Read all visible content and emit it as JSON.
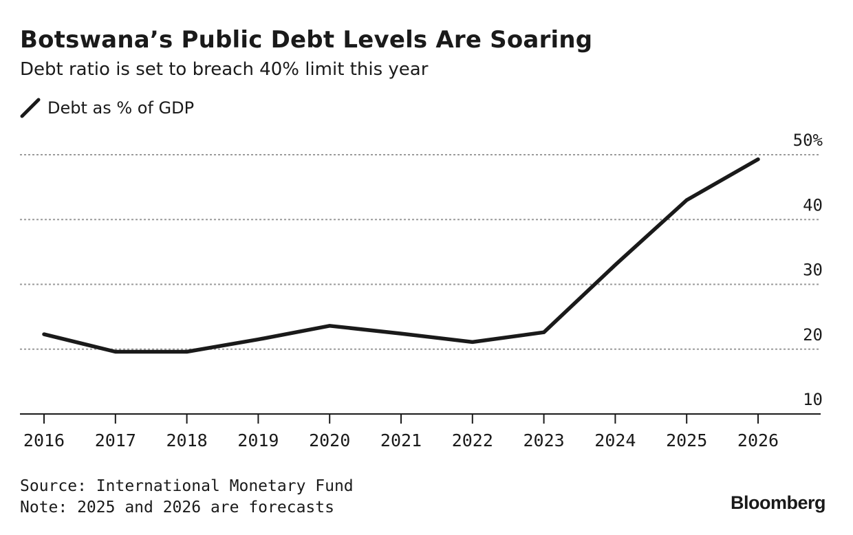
{
  "chart_data": {
    "type": "line",
    "title": "Botswana’s Public Debt Levels Are Soaring",
    "subtitle": "Debt ratio is set to breach 40% limit this year",
    "x": [
      "2016",
      "2017",
      "2018",
      "2019",
      "2020",
      "2021",
      "2022",
      "2023",
      "2024",
      "2025",
      "2026"
    ],
    "series": [
      {
        "name": "Debt as % of GDP",
        "values": [
          22.3,
          19.6,
          19.6,
          21.5,
          23.6,
          22.4,
          21.1,
          22.6,
          33.0,
          43.0,
          49.3
        ]
      }
    ],
    "ylim": [
      10,
      50
    ],
    "y_ticks": [
      "10",
      "20",
      "30",
      "40",
      "50%"
    ],
    "y_axis_side": "right",
    "grid": "dotted horizontal",
    "legend_position": "top-left",
    "line_color": "#1a1a1a",
    "grid_color": "#9a9a9a"
  },
  "footer": {
    "source": "Source: International Monetary Fund",
    "note": "Note: 2025 and 2026 are forecasts",
    "brand": "Bloomberg"
  }
}
